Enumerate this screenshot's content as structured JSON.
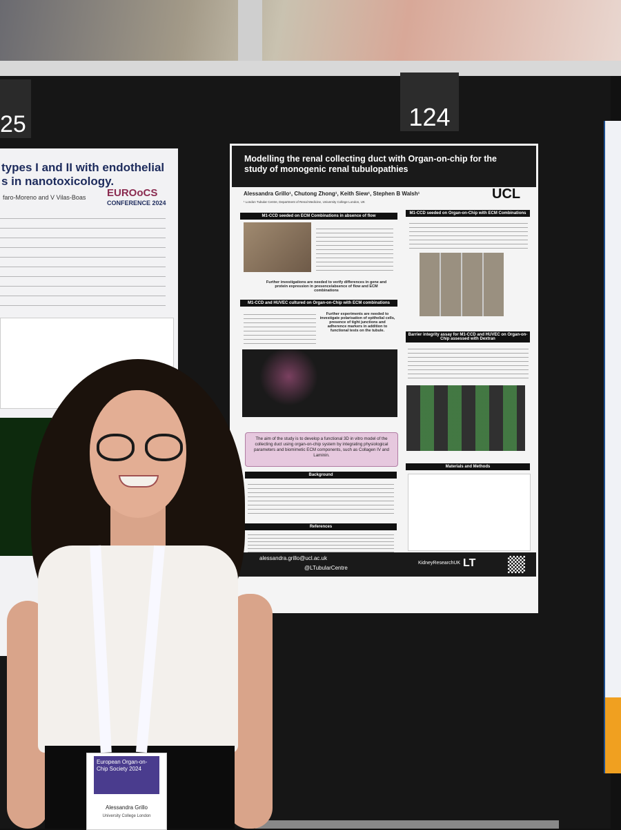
{
  "board_numbers": {
    "left": "25",
    "center": "124"
  },
  "left_poster": {
    "title_lines": [
      "types I and II with endothelial",
      "s in nanotoxicology."
    ],
    "authors": "faro-Moreno and V Vilas-Boas",
    "logo": "EUROoCS",
    "logo_sub": "CONFERENCE 2024"
  },
  "poster": {
    "title": "Modelling the renal collecting duct with Organ-on-chip for the study of monogenic renal tubulopathies",
    "authors": "Alessandra Grillo¹, Chutong Zhong¹, Keith Siew¹, Stephen B Walsh¹",
    "affiliation": "¹ London Tubular Centre, Department of Renal Medicine, University College London, UK",
    "logo": "UCL",
    "sections": [
      "M1-CCD seeded on ECM Combinations in absence of flow",
      "M1-CCD seeded on Organ-on-Chip with ECM Combinations",
      "M1-CCD and HUVEC cultured on Organ-on-Chip with ECM combinations",
      "Barrier integrity assay for M1-CCD and HUVEC on Organ-on-Chip assessed with Dextran",
      "Background",
      "Materials and Methods",
      "References"
    ],
    "callouts": [
      "Further investigations are needed to verify differences in gene and protein expression in presence/absence of flow and ECM combinations",
      "Further experiments are needed to investigate polarisation of epithelial cells, presence of tight junctions and adherence markers in addition to functional tests on the tubule."
    ],
    "aim": "The aim of the study is to develop a functional 3D in vitro model of the collecting duct using organ-on-chip system by integrating physiological parameters and biomimetic ECM components, such as Collagen IV and Laminin.",
    "footer": {
      "email": "alessandra.grillo@ucl.ac.uk",
      "handle": "@LTubularCentre",
      "lt": "LT",
      "kidney": "KidneyResearchUK"
    }
  },
  "badge": {
    "society": "European Organ-on-Chip Society 2024",
    "name": "Alessandra Grillo",
    "institution": "University College London"
  }
}
